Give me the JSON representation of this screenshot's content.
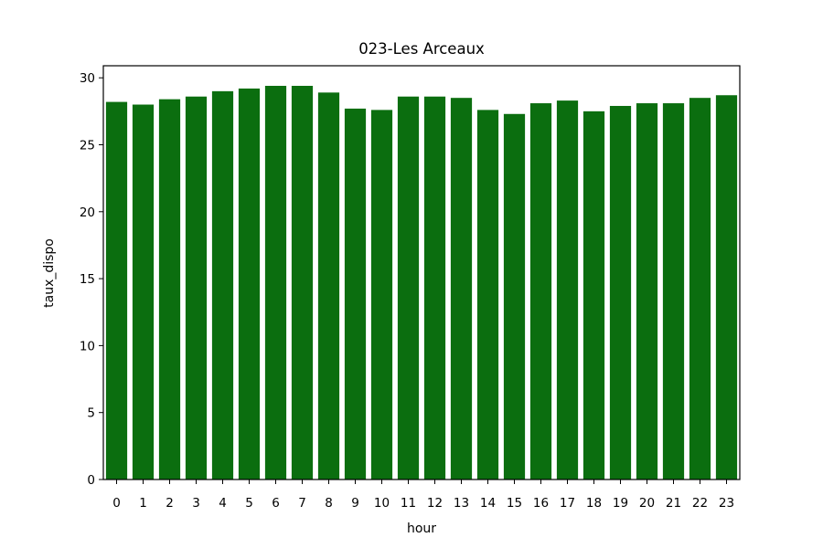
{
  "chart_data": {
    "type": "bar",
    "title": "023-Les Arceaux",
    "xlabel": "hour",
    "ylabel": "taux_dispo",
    "categories": [
      "0",
      "1",
      "2",
      "3",
      "4",
      "5",
      "6",
      "7",
      "8",
      "9",
      "10",
      "11",
      "12",
      "13",
      "14",
      "15",
      "16",
      "17",
      "18",
      "19",
      "20",
      "21",
      "22",
      "23"
    ],
    "values": [
      28.2,
      28.0,
      28.4,
      28.6,
      29.0,
      29.2,
      29.4,
      29.4,
      28.9,
      27.7,
      27.6,
      28.6,
      28.6,
      28.5,
      27.6,
      27.3,
      28.1,
      28.3,
      27.5,
      27.9,
      28.1,
      28.1,
      28.5,
      28.7
    ],
    "ylim": [
      0,
      30.9
    ],
    "yticks": [
      0,
      5,
      10,
      15,
      20,
      25,
      30
    ],
    "bar_color": "#0b6e0f",
    "grid": false,
    "legend": "none"
  }
}
